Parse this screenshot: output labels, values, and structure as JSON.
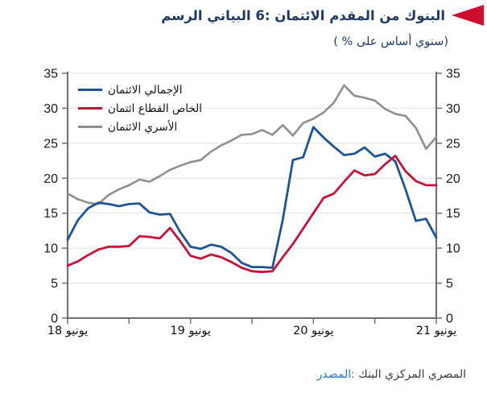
{
  "header": {
    "title": "الرسم‎ البياني‎ 6: الائتمان‎ المقدم‎ من‎ البنوك",
    "subtitle": "( % على‎ أساس‎ سنوي)"
  },
  "source": {
    "label": "المصدر‎:",
    "text": "البنك‎ المركزي‎ المصري"
  },
  "colors": {
    "accent_flag": "#CE0E2D",
    "title_navy": "#1F3864",
    "source_blue": "#2E74B5",
    "axis_gray": "#6F6F6F",
    "grid_gray": "#E0E0E0"
  },
  "chart_data": {
    "type": "line",
    "title": "الرسم البياني 6: الائتمان المقدم من البنوك",
    "subtitle": "( % على أساس سنوي)",
    "xlabel": "",
    "ylabel": "",
    "ylim": [
      0,
      35
    ],
    "y_ticks": [
      0,
      5,
      10,
      15,
      20,
      25,
      30,
      35
    ],
    "grid": true,
    "legend_position": "top-left",
    "x_labels": [
      "يونيو 18",
      "يونيو 19",
      "يونيو 20",
      "يونيو 21"
    ],
    "x_label_indices": [
      0,
      12,
      24,
      36
    ],
    "x_minor_tick_indices": [
      6,
      18,
      30
    ],
    "x_frequency": "monthly (Jun 2018 - Jun 2021)",
    "series": [
      {
        "name": "الائتمان‎ الإجمالي",
        "color": "#1F5493",
        "width": 2.8,
        "z": 2,
        "values": [
          11.2,
          14.0,
          15.7,
          16.5,
          16.3,
          16.0,
          16.3,
          16.4,
          15.1,
          14.8,
          14.9,
          12.3,
          10.2,
          9.9,
          10.5,
          10.2,
          9.3,
          7.9,
          7.3,
          7.3,
          7.2,
          14.0,
          22.6,
          23.0,
          27.3,
          25.8,
          24.5,
          23.3,
          23.5,
          24.4,
          23.1,
          23.5,
          22.4,
          18.4,
          13.9,
          14.2,
          11.5
        ]
      },
      {
        "name": "ائتمان‎ القطاع‎ الخاص",
        "color": "#C51236",
        "width": 2.8,
        "z": 3,
        "values": [
          7.5,
          8.1,
          9.0,
          9.8,
          10.2,
          10.2,
          10.3,
          11.7,
          11.6,
          11.4,
          12.9,
          11.0,
          8.9,
          8.5,
          9.1,
          8.7,
          8.0,
          7.2,
          6.7,
          6.6,
          6.7,
          8.7,
          10.6,
          12.8,
          15.0,
          17.2,
          17.8,
          19.5,
          21.1,
          20.4,
          20.6,
          22.0,
          23.2,
          21.0,
          19.6,
          19.0,
          19.0
        ]
      },
      {
        "name": "الائتمان‎ الأسري",
        "color": "#8F8F8F",
        "width": 2.6,
        "z": 1,
        "values": [
          17.8,
          17.0,
          16.5,
          16.3,
          17.6,
          18.4,
          19.0,
          19.8,
          19.5,
          20.3,
          21.2,
          21.8,
          22.3,
          22.6,
          23.8,
          24.7,
          25.4,
          26.2,
          26.3,
          26.9,
          26.2,
          27.6,
          26.1,
          27.9,
          28.5,
          29.4,
          30.8,
          33.3,
          31.8,
          31.5,
          31.1,
          29.9,
          29.2,
          28.9,
          27.2,
          24.2,
          25.9
        ]
      }
    ]
  }
}
